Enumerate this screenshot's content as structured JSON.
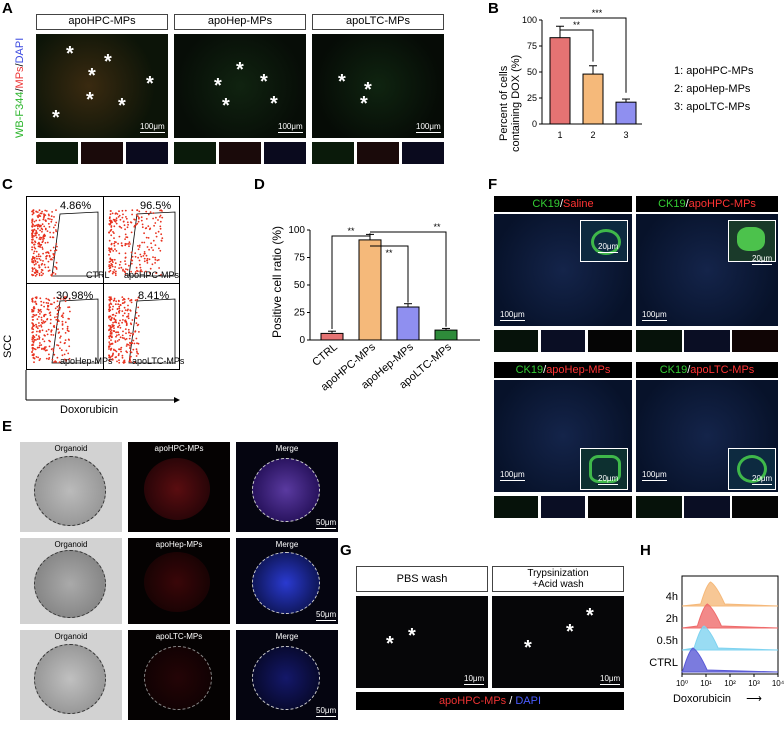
{
  "panels": {
    "A": "A",
    "B": "B",
    "C": "C",
    "D": "D",
    "E": "E",
    "F": "F",
    "G": "G",
    "H": "H"
  },
  "A": {
    "headers": [
      "apoHPC-MPs",
      "apoHep-MPs",
      "apoLTC-MPs"
    ],
    "ylabel_green": "WB-F344",
    "ylabel_sep1": "/",
    "ylabel_red": "MPs",
    "ylabel_sep2": "/",
    "ylabel_blue": "DAPI",
    "scalebar": "100μm",
    "star": "*"
  },
  "B": {
    "chart_data": {
      "type": "bar",
      "categories": [
        "1",
        "2",
        "3"
      ],
      "values": [
        83,
        48,
        21
      ],
      "errors": [
        11,
        8,
        3
      ],
      "colors": [
        "#e57373",
        "#f5b97a",
        "#8f8ff0"
      ],
      "ylabel": "Percent of cells containing DOX (%)",
      "ylim": [
        0,
        100
      ],
      "yticks": [
        "0",
        "25",
        "50",
        "75",
        "100"
      ],
      "significance": [
        "**",
        "***"
      ]
    },
    "ylabel_line1": "Percent of cells",
    "ylabel_line2": "containing DOX (%)",
    "legend": [
      "1: apoHPC-MPs",
      "2: apoHep-MPs",
      "3: apoLTC-MPs"
    ]
  },
  "C": {
    "quadrants": [
      {
        "pct": "4.86%",
        "name": "CTRL"
      },
      {
        "pct": "96.5%",
        "name": "apoHPC-MPs"
      },
      {
        "pct": "30.98%",
        "name": "apoHep-MPs"
      },
      {
        "pct": "8.41%",
        "name": "apoLTC-MPs"
      }
    ],
    "ylabel": "SCC",
    "xlabel": "Doxorubicin"
  },
  "D": {
    "chart_data": {
      "type": "bar",
      "categories": [
        "CTRL",
        "apoHPC-MPs",
        "apoHep-MPs",
        "apoLTC-MPs"
      ],
      "values": [
        6,
        91,
        30,
        9
      ],
      "errors": [
        2,
        5,
        3,
        1.5
      ],
      "colors": [
        "#e57373",
        "#f5b97a",
        "#8f8ff0",
        "#2e8b3a"
      ],
      "ylabel": "Positive cell ratio (%)",
      "ylim": [
        0,
        100
      ],
      "yticks": [
        "0",
        "25",
        "50",
        "75",
        "100"
      ],
      "significance": [
        "**",
        "**",
        "**"
      ]
    }
  },
  "E": {
    "rows": [
      {
        "organoid": "Organoid",
        "mp": "apoHPC-MPs",
        "merge": "Merge"
      },
      {
        "organoid": "Organoid",
        "mp": "apoHep-MPs",
        "merge": "Merge"
      },
      {
        "organoid": "Organoid",
        "mp": "apoLTC-MPs",
        "merge": "Merge"
      }
    ],
    "scalebar": "50μm"
  },
  "F": {
    "headers": [
      {
        "marker": "CK19",
        "sep": "/",
        "treat": "Saline"
      },
      {
        "marker": "CK19",
        "sep": "/",
        "treat": "apoHPC-MPs"
      },
      {
        "marker": "CK19",
        "sep": "/",
        "treat": "apoHep-MPs"
      },
      {
        "marker": "CK19",
        "sep": "/",
        "treat": "apoLTC-MPs"
      }
    ],
    "scale_big": "100μm",
    "scale_small": "20μm"
  },
  "G": {
    "headers": [
      "PBS wash",
      "Trypsinization\n+Acid wash"
    ],
    "caption_red": "apoHPC-MPs",
    "caption_sep": " / ",
    "caption_blue": "DAPI",
    "scalebar": "10μm"
  },
  "H": {
    "chart_data": {
      "type": "area",
      "series": [
        {
          "name": "4h",
          "color": "#f5b97a",
          "peak": 0.85
        },
        {
          "name": "2h",
          "color": "#ef6b6b",
          "peak": 0.7
        },
        {
          "name": "0.5h",
          "color": "#7fd3f0",
          "peak": 0.55
        },
        {
          "name": "CTRL",
          "color": "#5a5ad6",
          "peak": 0.05
        }
      ],
      "xticks": [
        "10⁰",
        "10¹",
        "10²",
        "10³",
        "10⁴"
      ],
      "xlabel": "Doxorubicin"
    },
    "arrow": "⟶"
  }
}
